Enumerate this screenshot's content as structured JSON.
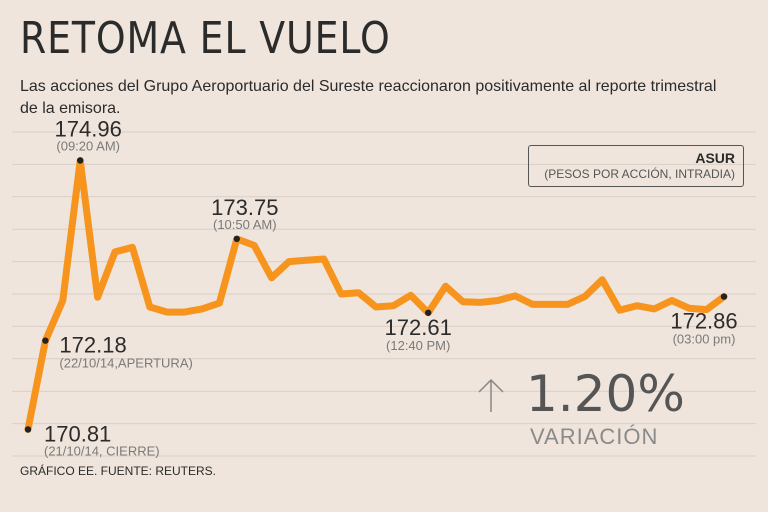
{
  "header": {
    "title": "RETOMA EL VUELO",
    "subtitle": "Las acciones del Grupo Aeroportuario del Sureste reaccionaron positivamente al reporte trimestral de la emisora."
  },
  "legend": {
    "ticker": "ASUR",
    "units": "(PESOS POR ACCIÓN, INTRADIA)"
  },
  "variation": {
    "value": "1.20%",
    "label": "VARIACIÓN"
  },
  "source": "GRÁFICO EE. FUENTE: REUTERS.",
  "colors": {
    "background": "#efe5dc",
    "line": "#f7941d",
    "marker": "#222222"
  },
  "chart_data": {
    "type": "line",
    "title": "RETOMA EL VUELO",
    "ylabel": "PESOS POR ACCIÓN, INTRADIA",
    "ylim": [
      170.4,
      175.4
    ],
    "grid": true,
    "legend": "top-right",
    "series": [
      {
        "name": "ASUR",
        "values": [
          170.81,
          172.18,
          172.8,
          174.96,
          172.85,
          173.55,
          173.62,
          172.7,
          172.62,
          172.62,
          172.67,
          172.76,
          173.75,
          173.65,
          173.15,
          173.4,
          173.42,
          173.44,
          172.9,
          172.92,
          172.7,
          172.72,
          172.88,
          172.61,
          173.02,
          172.78,
          172.77,
          172.8,
          172.87,
          172.74,
          172.74,
          172.74,
          172.86,
          173.12,
          172.65,
          172.72,
          172.67,
          172.8,
          172.68,
          172.66,
          172.86
        ]
      }
    ],
    "annotations": [
      {
        "index": 0,
        "value": "170.81",
        "label": "(21/10/14, CIERRE)"
      },
      {
        "index": 1,
        "value": "172.18",
        "label": "(22/10/14,APERTURA)"
      },
      {
        "index": 3,
        "value": "174.96",
        "label": "(09:20 AM)"
      },
      {
        "index": 12,
        "value": "173.75",
        "label": "(10:50 AM)"
      },
      {
        "index": 23,
        "value": "172.61",
        "label": "(12:40 PM)"
      },
      {
        "index": 40,
        "value": "172.86",
        "label": "(03:00 pm)"
      }
    ]
  }
}
